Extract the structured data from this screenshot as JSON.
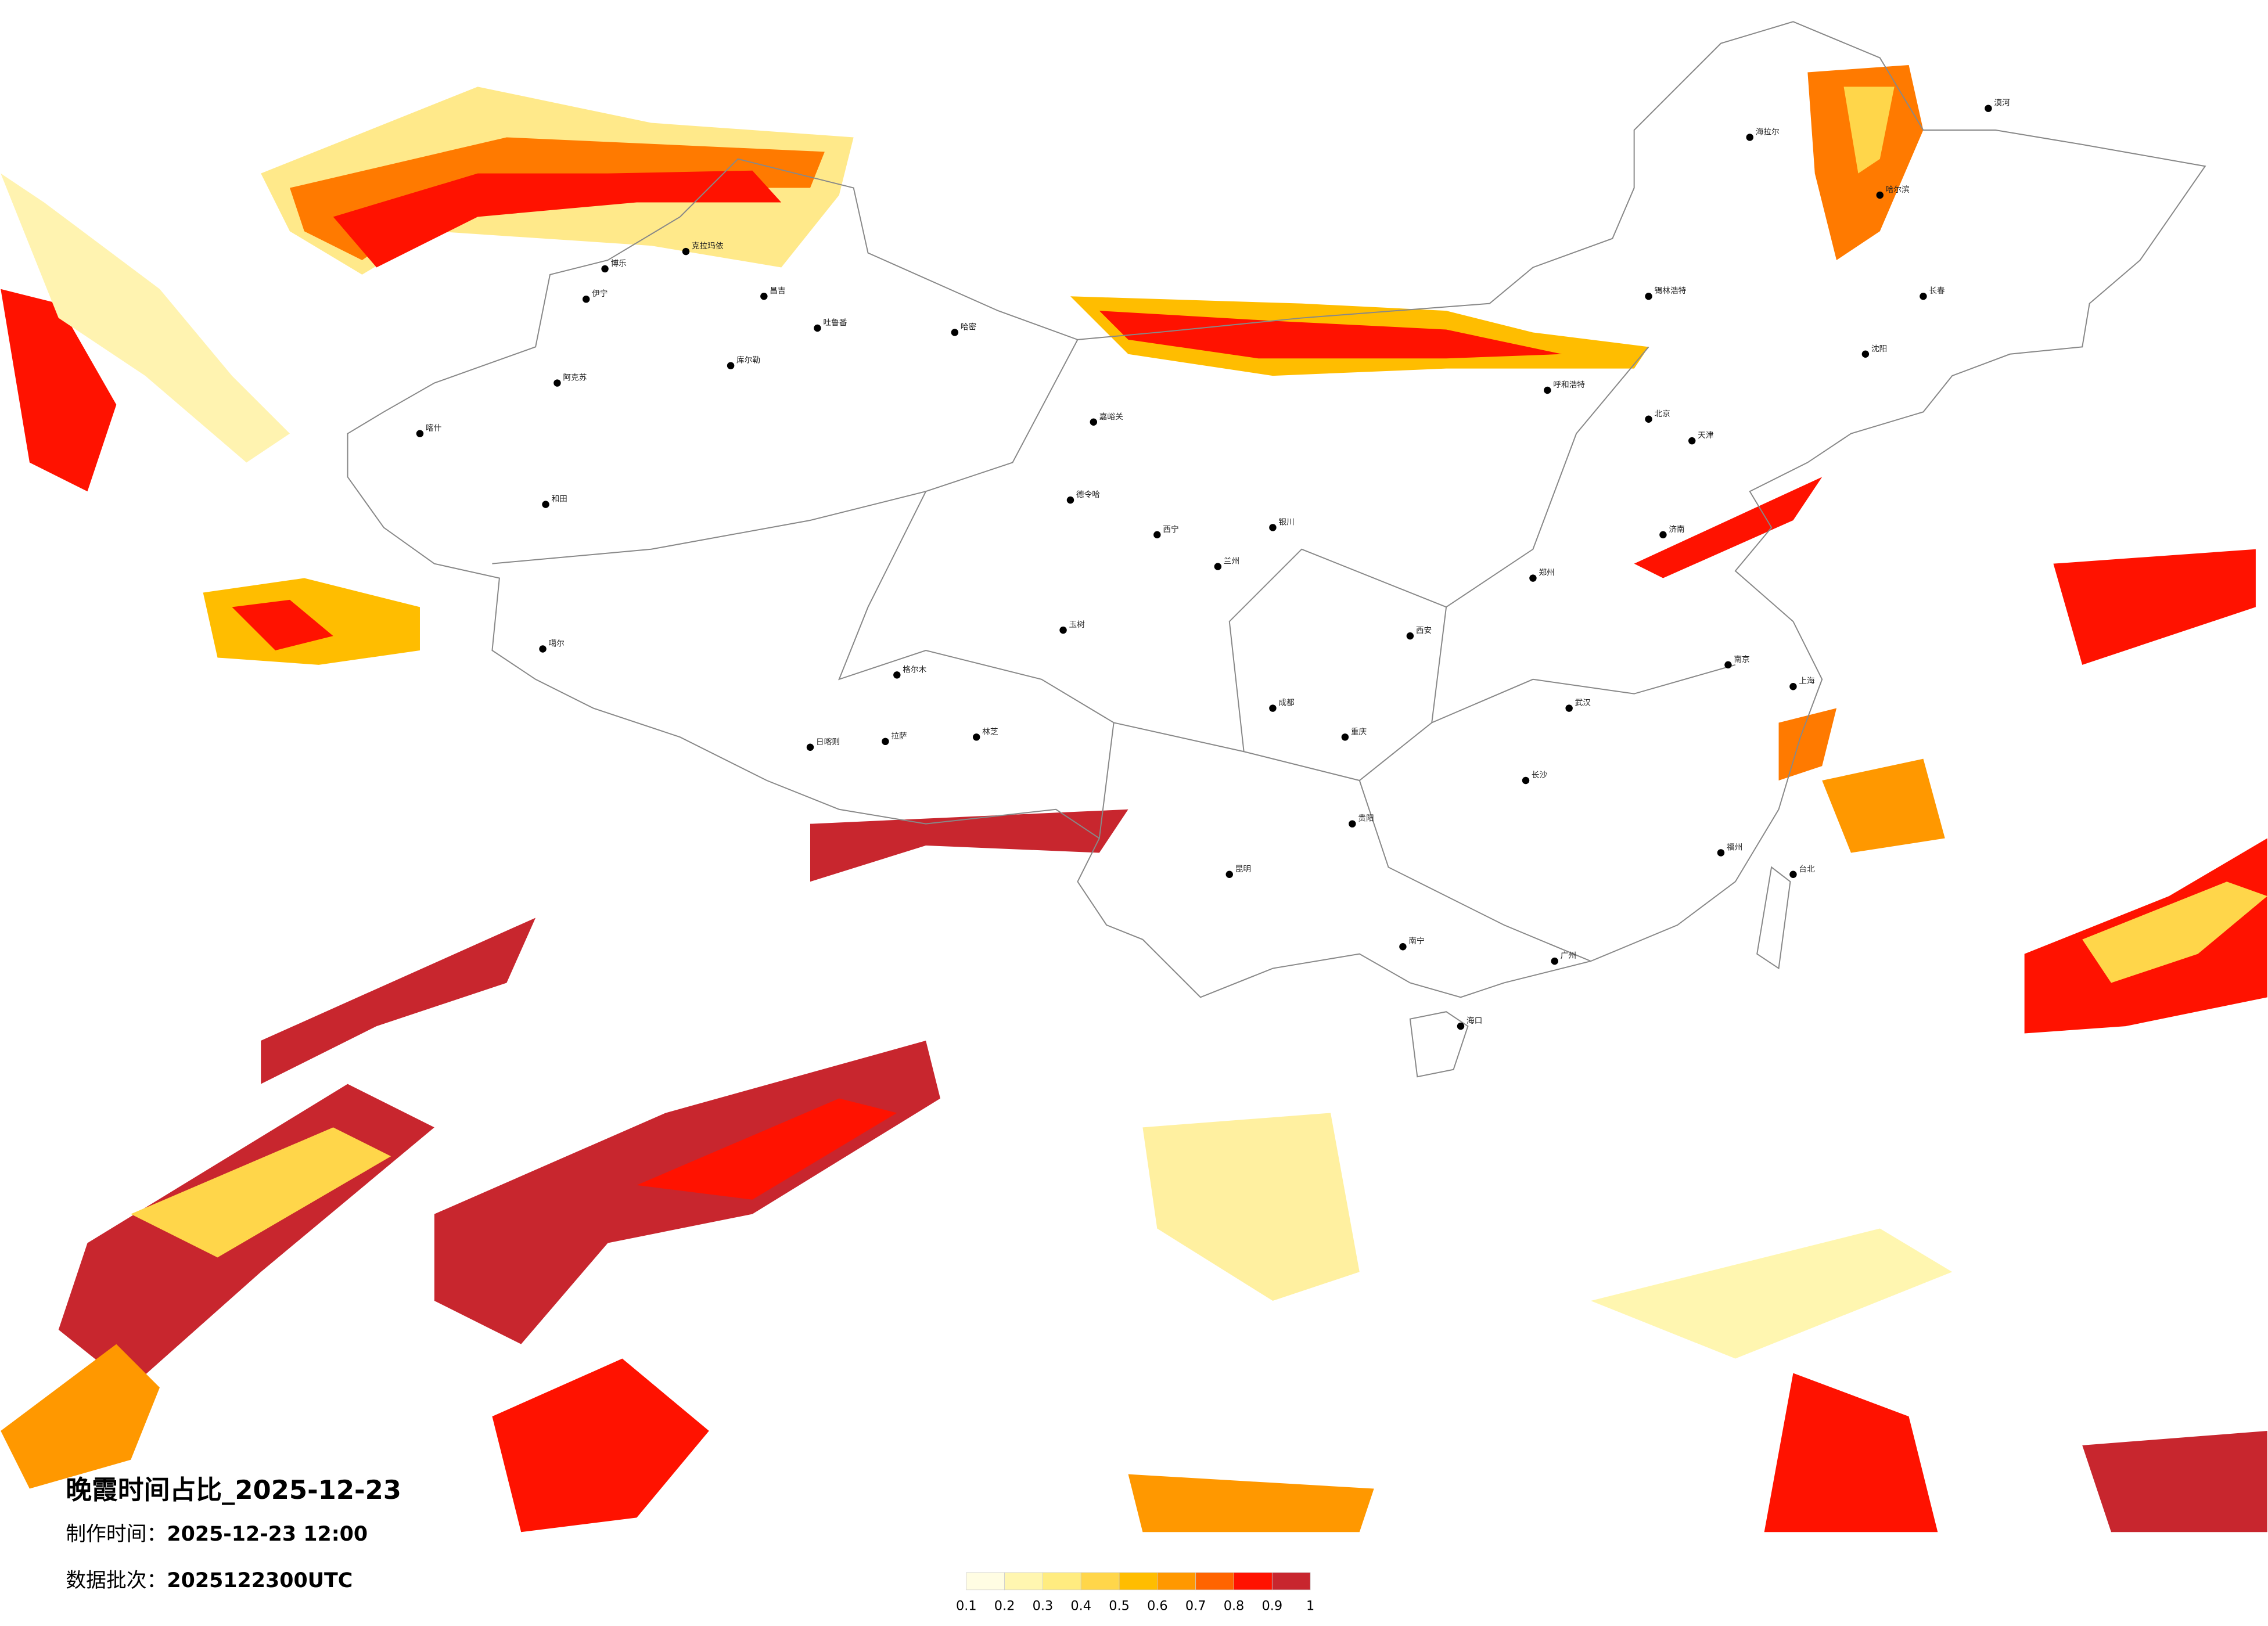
{
  "title": "晚霞时间占比_2025-12-23",
  "production_time": {
    "label": "制作时间：",
    "value": "2025-12-23 12:00"
  },
  "batch": {
    "label": "数据批次：",
    "value": "2025122300UTC"
  },
  "legend": {
    "ticks": [
      0.1,
      0.2,
      0.3,
      0.4,
      0.5,
      0.6,
      0.7,
      0.8,
      0.9,
      1
    ],
    "colors": [
      "#fffde3",
      "#fff6b0",
      "#ffec80",
      "#ffd64a",
      "#ffbd00",
      "#ff9800",
      "#ff6400",
      "#ff1200",
      "#c8262e"
    ]
  },
  "cities": [
    "伊宁",
    "博乐",
    "克拉玛依",
    "昌吉",
    "吐鲁番",
    "哈密",
    "库尔勒",
    "阿克苏",
    "喀什",
    "和田",
    "噶尔",
    "日喀则",
    "拉萨",
    "林芝",
    "嘉峪关",
    "德令哈",
    "格尔木",
    "玉树",
    "西宁",
    "兰州",
    "银川",
    "呼和浩特",
    "北京",
    "天津",
    "哈尔滨",
    "长春",
    "沈阳",
    "上海",
    "南京",
    "武汉",
    "长沙",
    "广州",
    "南宁",
    "昆明",
    "贵阳",
    "成都",
    "重庆",
    "西安",
    "郑州",
    "济南",
    "福州",
    "台北",
    "海口",
    "漠河",
    "海拉尔",
    "锡林浩特"
  ]
}
